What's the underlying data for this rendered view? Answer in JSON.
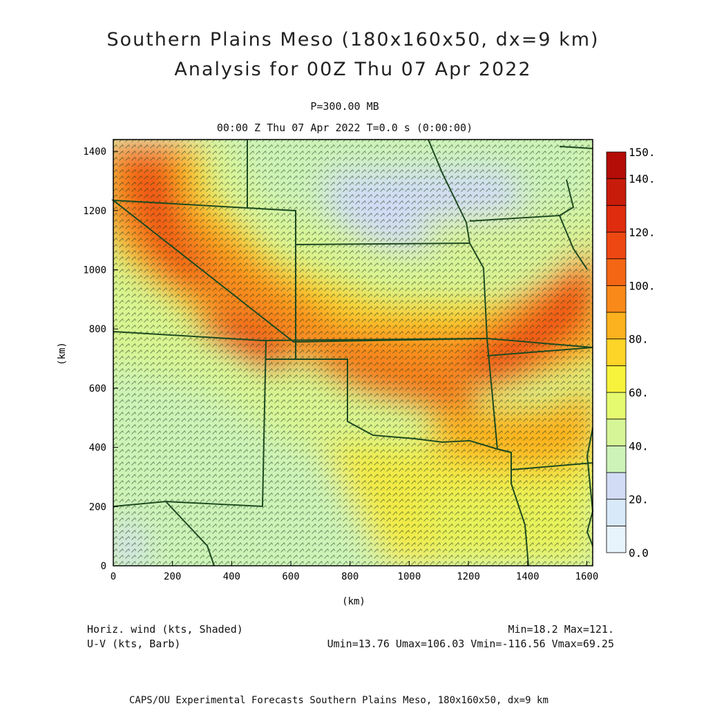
{
  "header": {
    "title_line1": "Southern Plains Meso (180x160x50, dx=9 km)",
    "title_line2": "Analysis for 00Z Thu 07 Apr 2022",
    "level": "P=300.00 MB",
    "time": "00:00 Z Thu 07 Apr 2022   T=0.0 s (0:00:00)"
  },
  "chart_data": {
    "type": "heatmap",
    "xlabel": "(km)",
    "ylabel": "(km)",
    "xlim": [
      0,
      1620
    ],
    "ylim": [
      0,
      1440
    ],
    "x_ticks": [
      "0",
      "200",
      "400",
      "600",
      "800",
      "1000",
      "1200",
      "1400",
      "1600"
    ],
    "y_ticks": [
      "0",
      "200",
      "400",
      "600",
      "800",
      "1000",
      "1200",
      "1400"
    ],
    "variable": "Horiz. wind (kts, Shaded)",
    "overlay": "U-V (kts, Barb)",
    "colorbar": {
      "labels": [
        "0.0",
        "20.",
        "40.",
        "60.",
        "80.",
        "100.",
        "120.",
        "140.",
        "150."
      ],
      "colors": [
        "#e8f4fc",
        "#d8eafa",
        "#d2dcf5",
        "#cdf3b8",
        "#d6f596",
        "#e6fa70",
        "#f7f23c",
        "#fdd428",
        "#fcb21e",
        "#f98a1a",
        "#f46614",
        "#ee4812",
        "#e02c0e",
        "#c81c0a",
        "#b40c06"
      ]
    },
    "stats": {
      "minmax": "Min=18.2 Max=121.",
      "uv_range": "Umin=13.76 Umax=106.03 Vmin=-116.56 Vmax=69.25"
    }
  },
  "footer": {
    "credit": "CAPS/OU Experimental Forecasts  Southern Plains Meso, 180x160x50, dx=9 km"
  }
}
